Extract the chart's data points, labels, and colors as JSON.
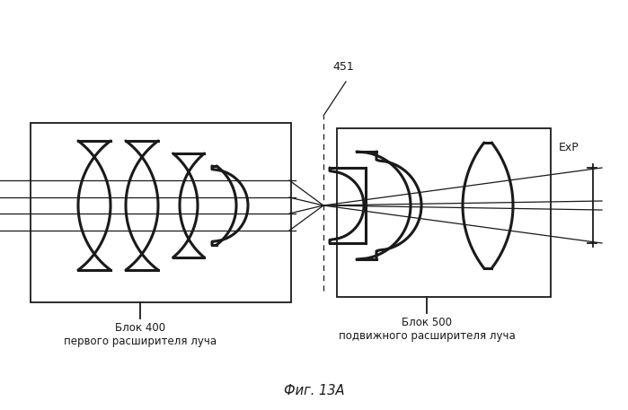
{
  "fig_label": "Фиг. 13A",
  "block400_label": "Блок 400\nпервого расширителя луча",
  "block500_label": "Блок 500\nподвижного расширителя луча",
  "exp_label": "ExP",
  "label_451": "451",
  "bg_color": "#ffffff",
  "line_color": "#1a1a1a"
}
